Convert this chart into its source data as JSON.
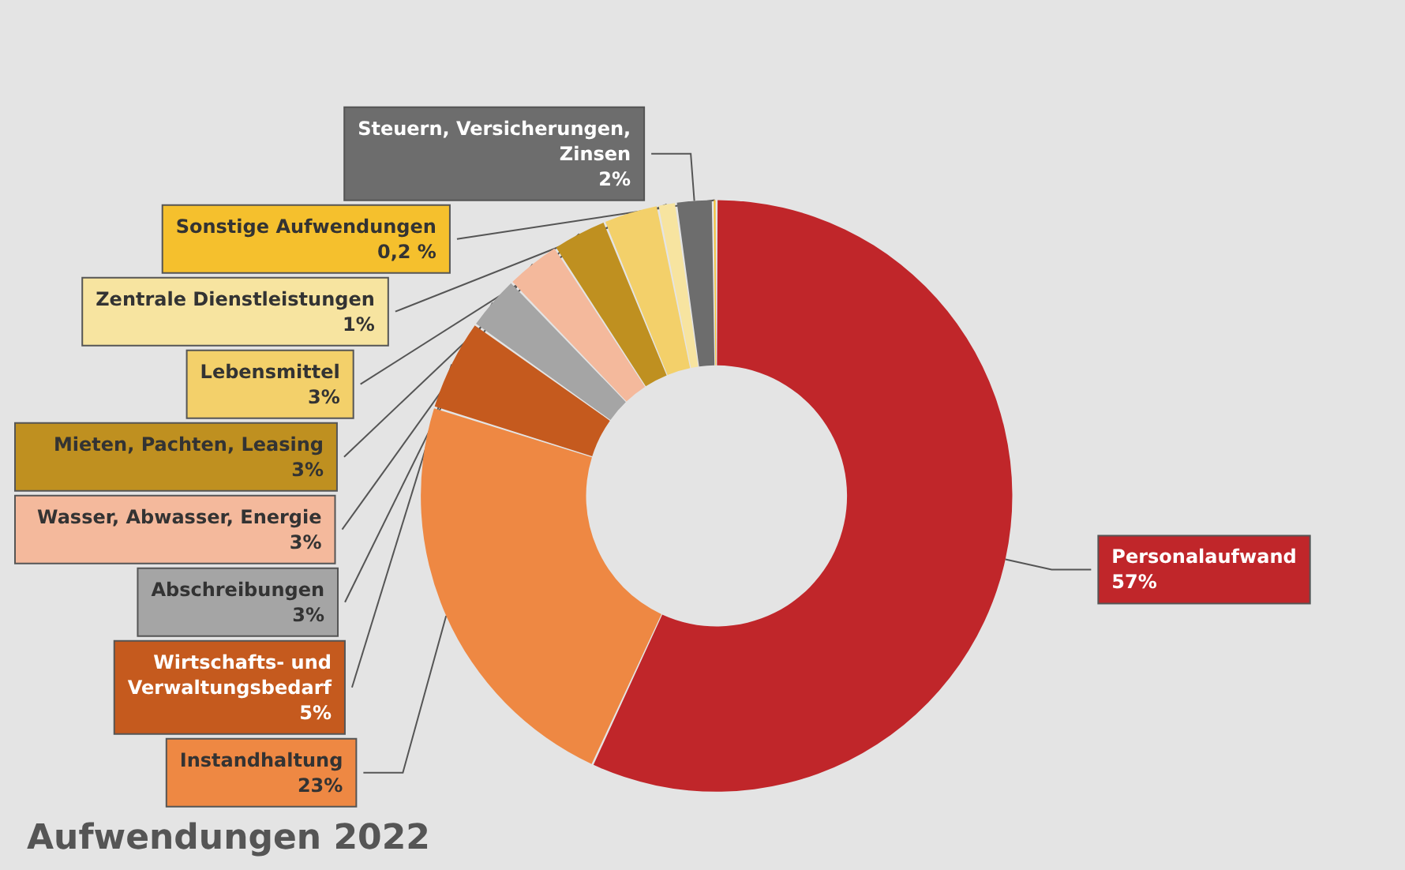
{
  "chart_data": {
    "type": "donut",
    "title": "Aufwendungen 2022",
    "categories": [
      "Personalaufwand",
      "Instandhaltung",
      "Wirtschafts- und\nVerwaltungsbedarf",
      "Abschreibungen",
      "Wasser, Abwasser, Energie",
      "Mieten, Pachten, Leasing",
      "Lebensmittel",
      "Zentrale Dienstleistungen",
      "Steuern, Versicherungen,\nZinsen",
      "Sonstige Aufwendungen"
    ],
    "values": [
      57,
      23,
      5,
      3,
      3,
      3,
      3,
      1,
      2,
      0.2
    ],
    "value_labels": [
      "57%",
      "23%",
      "5%",
      "3%",
      "3%",
      "3%",
      "3%",
      "1%",
      "2%",
      "0,2 %"
    ],
    "colors": [
      "#c0262a",
      "#ee8843",
      "#c55a1e",
      "#a5a5a5",
      "#f4b99c",
      "#bf9020",
      "#f3d06a",
      "#f7e4a0",
      "#6d6d6d",
      "#f5c02d"
    ],
    "legend": false
  }
}
